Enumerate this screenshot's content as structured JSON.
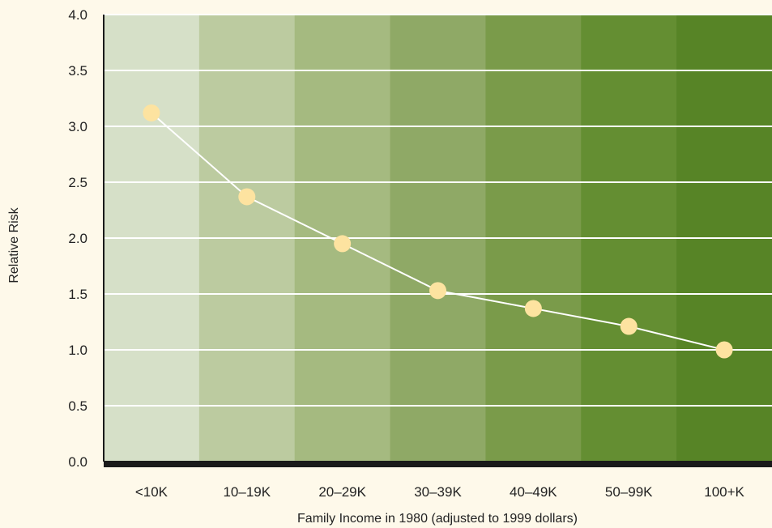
{
  "chart_data": {
    "type": "line",
    "title": "",
    "xlabel": "Family Income in 1980 (adjusted to 1999 dollars)",
    "ylabel": "Relative Risk",
    "categories": [
      "<10K",
      "10–19K",
      "20–29K",
      "30–39K",
      "40–49K",
      "50–99K",
      "100+K"
    ],
    "series": [
      {
        "values": [
          3.12,
          2.37,
          1.95,
          1.53,
          1.37,
          1.21,
          1.0
        ]
      }
    ],
    "ylim": [
      0,
      4
    ],
    "yticks": [
      "0.0",
      "0.5",
      "1.0",
      "1.5",
      "2.0",
      "2.5",
      "3.0",
      "3.5",
      "4.0"
    ],
    "grid": true,
    "legend": "none"
  },
  "colors": {
    "background": "#fef9ea",
    "band_fills": [
      "#d6e0c8",
      "#bccba0",
      "#a5ba80",
      "#8fa966",
      "#7a9b4a",
      "#648e32",
      "#578426"
    ],
    "grid": "#ffffff",
    "line": "#ffffff",
    "marker": "#fde3a0",
    "axis": "#1a1a1a"
  }
}
